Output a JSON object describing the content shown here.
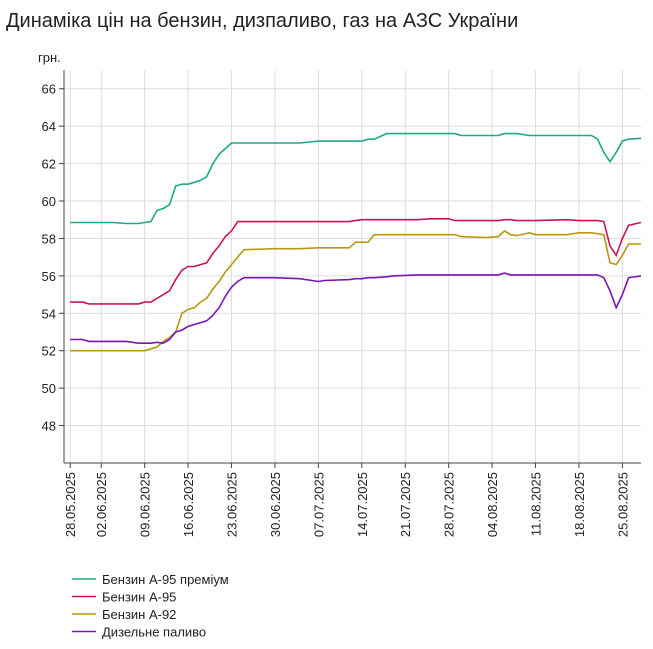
{
  "chart_data": {
    "type": "line",
    "title": "Динаміка цін на бензин, дизпаливо, газ на АЗС України",
    "y_label": "грн.",
    "x": [
      "28.05.2025",
      "30.05.2025",
      "31.05.2025",
      "04.06.2025",
      "06.06.2025",
      "08.06.2025",
      "09.06.2025",
      "10.06.2025",
      "11.06.2025",
      "12.06.2025",
      "13.06.2025",
      "14.06.2025",
      "15.06.2025",
      "16.06.2025",
      "17.06.2025",
      "18.06.2025",
      "19.06.2025",
      "20.06.2025",
      "21.06.2025",
      "22.06.2025",
      "23.06.2025",
      "24.06.2025",
      "25.06.2025",
      "30.06.2025",
      "04.07.2025",
      "07.07.2025",
      "08.07.2025",
      "12.07.2025",
      "13.07.2025",
      "14.07.2025",
      "15.07.2025",
      "16.07.2025",
      "18.07.2025",
      "19.07.2025",
      "23.07.2025",
      "25.07.2025",
      "28.07.2025",
      "29.07.2025",
      "30.07.2025",
      "03.08.2025",
      "05.08.2025",
      "06.08.2025",
      "07.08.2025",
      "08.08.2025",
      "10.08.2025",
      "11.08.2025",
      "16.08.2025",
      "18.08.2025",
      "20.08.2025",
      "21.08.2025",
      "22.08.2025",
      "23.08.2025",
      "24.08.2025",
      "25.08.2025",
      "26.08.2025",
      "28.08.2025"
    ],
    "series": [
      {
        "name": "Бензин А-95 преміум",
        "color": "#1fa886",
        "values": [
          58.85,
          58.85,
          58.85,
          58.85,
          58.8,
          58.8,
          58.85,
          58.9,
          59.5,
          59.6,
          59.8,
          60.8,
          60.9,
          60.9,
          61.0,
          61.1,
          61.3,
          62.0,
          62.5,
          62.8,
          63.1,
          63.1,
          63.1,
          63.1,
          63.1,
          63.2,
          63.2,
          63.2,
          63.2,
          63.2,
          63.3,
          63.3,
          63.6,
          63.6,
          63.6,
          63.6,
          63.6,
          63.6,
          63.5,
          63.5,
          63.5,
          63.6,
          63.6,
          63.6,
          63.5,
          63.5,
          63.5,
          63.5,
          63.5,
          63.3,
          62.6,
          62.1,
          62.6,
          63.2,
          63.3,
          63.35
        ]
      },
      {
        "name": "Бензин А-95",
        "color": "#c8145c",
        "values": [
          54.6,
          54.6,
          54.5,
          54.5,
          54.5,
          54.5,
          54.6,
          54.6,
          54.8,
          55.0,
          55.2,
          55.8,
          56.3,
          56.5,
          56.5,
          56.6,
          56.7,
          57.2,
          57.6,
          58.1,
          58.4,
          58.9,
          58.9,
          58.9,
          58.9,
          58.9,
          58.9,
          58.9,
          58.95,
          59.0,
          59.0,
          59.0,
          59.0,
          59.0,
          59.0,
          59.05,
          59.05,
          58.95,
          58.95,
          58.95,
          58.95,
          59.0,
          59.0,
          58.95,
          58.95,
          58.95,
          59.0,
          58.95,
          58.95,
          58.95,
          58.9,
          57.6,
          57.1,
          58.0,
          58.7,
          58.85
        ]
      },
      {
        "name": "Бензин А-92",
        "color": "#b8980f",
        "values": [
          52.0,
          52.0,
          52.0,
          52.0,
          52.0,
          52.0,
          52.0,
          52.1,
          52.2,
          52.5,
          52.7,
          53.0,
          54.0,
          54.2,
          54.3,
          54.6,
          54.8,
          55.3,
          55.7,
          56.2,
          56.6,
          57.0,
          57.4,
          57.45,
          57.45,
          57.5,
          57.5,
          57.5,
          57.8,
          57.8,
          57.8,
          58.2,
          58.2,
          58.2,
          58.2,
          58.2,
          58.2,
          58.2,
          58.1,
          58.05,
          58.1,
          58.4,
          58.2,
          58.15,
          58.3,
          58.2,
          58.2,
          58.3,
          58.3,
          58.25,
          58.2,
          56.7,
          56.6,
          57.1,
          57.7,
          57.7
        ]
      },
      {
        "name": "Дизельне паливо",
        "color": "#7a14b4",
        "values": [
          52.6,
          52.6,
          52.5,
          52.5,
          52.5,
          52.4,
          52.4,
          52.4,
          52.45,
          52.4,
          52.6,
          53.0,
          53.1,
          53.3,
          53.4,
          53.5,
          53.6,
          53.9,
          54.3,
          54.9,
          55.4,
          55.7,
          55.9,
          55.9,
          55.85,
          55.7,
          55.75,
          55.8,
          55.85,
          55.85,
          55.9,
          55.9,
          55.95,
          56.0,
          56.05,
          56.05,
          56.05,
          56.05,
          56.05,
          56.05,
          56.05,
          56.15,
          56.05,
          56.05,
          56.05,
          56.05,
          56.05,
          56.05,
          56.05,
          56.05,
          55.9,
          55.2,
          54.3,
          55.0,
          55.9,
          56.0
        ]
      }
    ],
    "xlim": [
      "27.05.2025",
      "28.08.2025"
    ],
    "xticks": [
      "28.05.2025",
      "02.06.2025",
      "09.06.2025",
      "16.06.2025",
      "23.06.2025",
      "30.06.2025",
      "07.07.2025",
      "14.07.2025",
      "21.07.2025",
      "28.07.2025",
      "04.08.2025",
      "11.08.2025",
      "18.08.2025",
      "25.08.2025"
    ],
    "ylim": [
      46,
      67
    ],
    "yticks": [
      48,
      50,
      52,
      54,
      56,
      58,
      60,
      62,
      64,
      66
    ],
    "grid": true,
    "legend": "bottom"
  }
}
